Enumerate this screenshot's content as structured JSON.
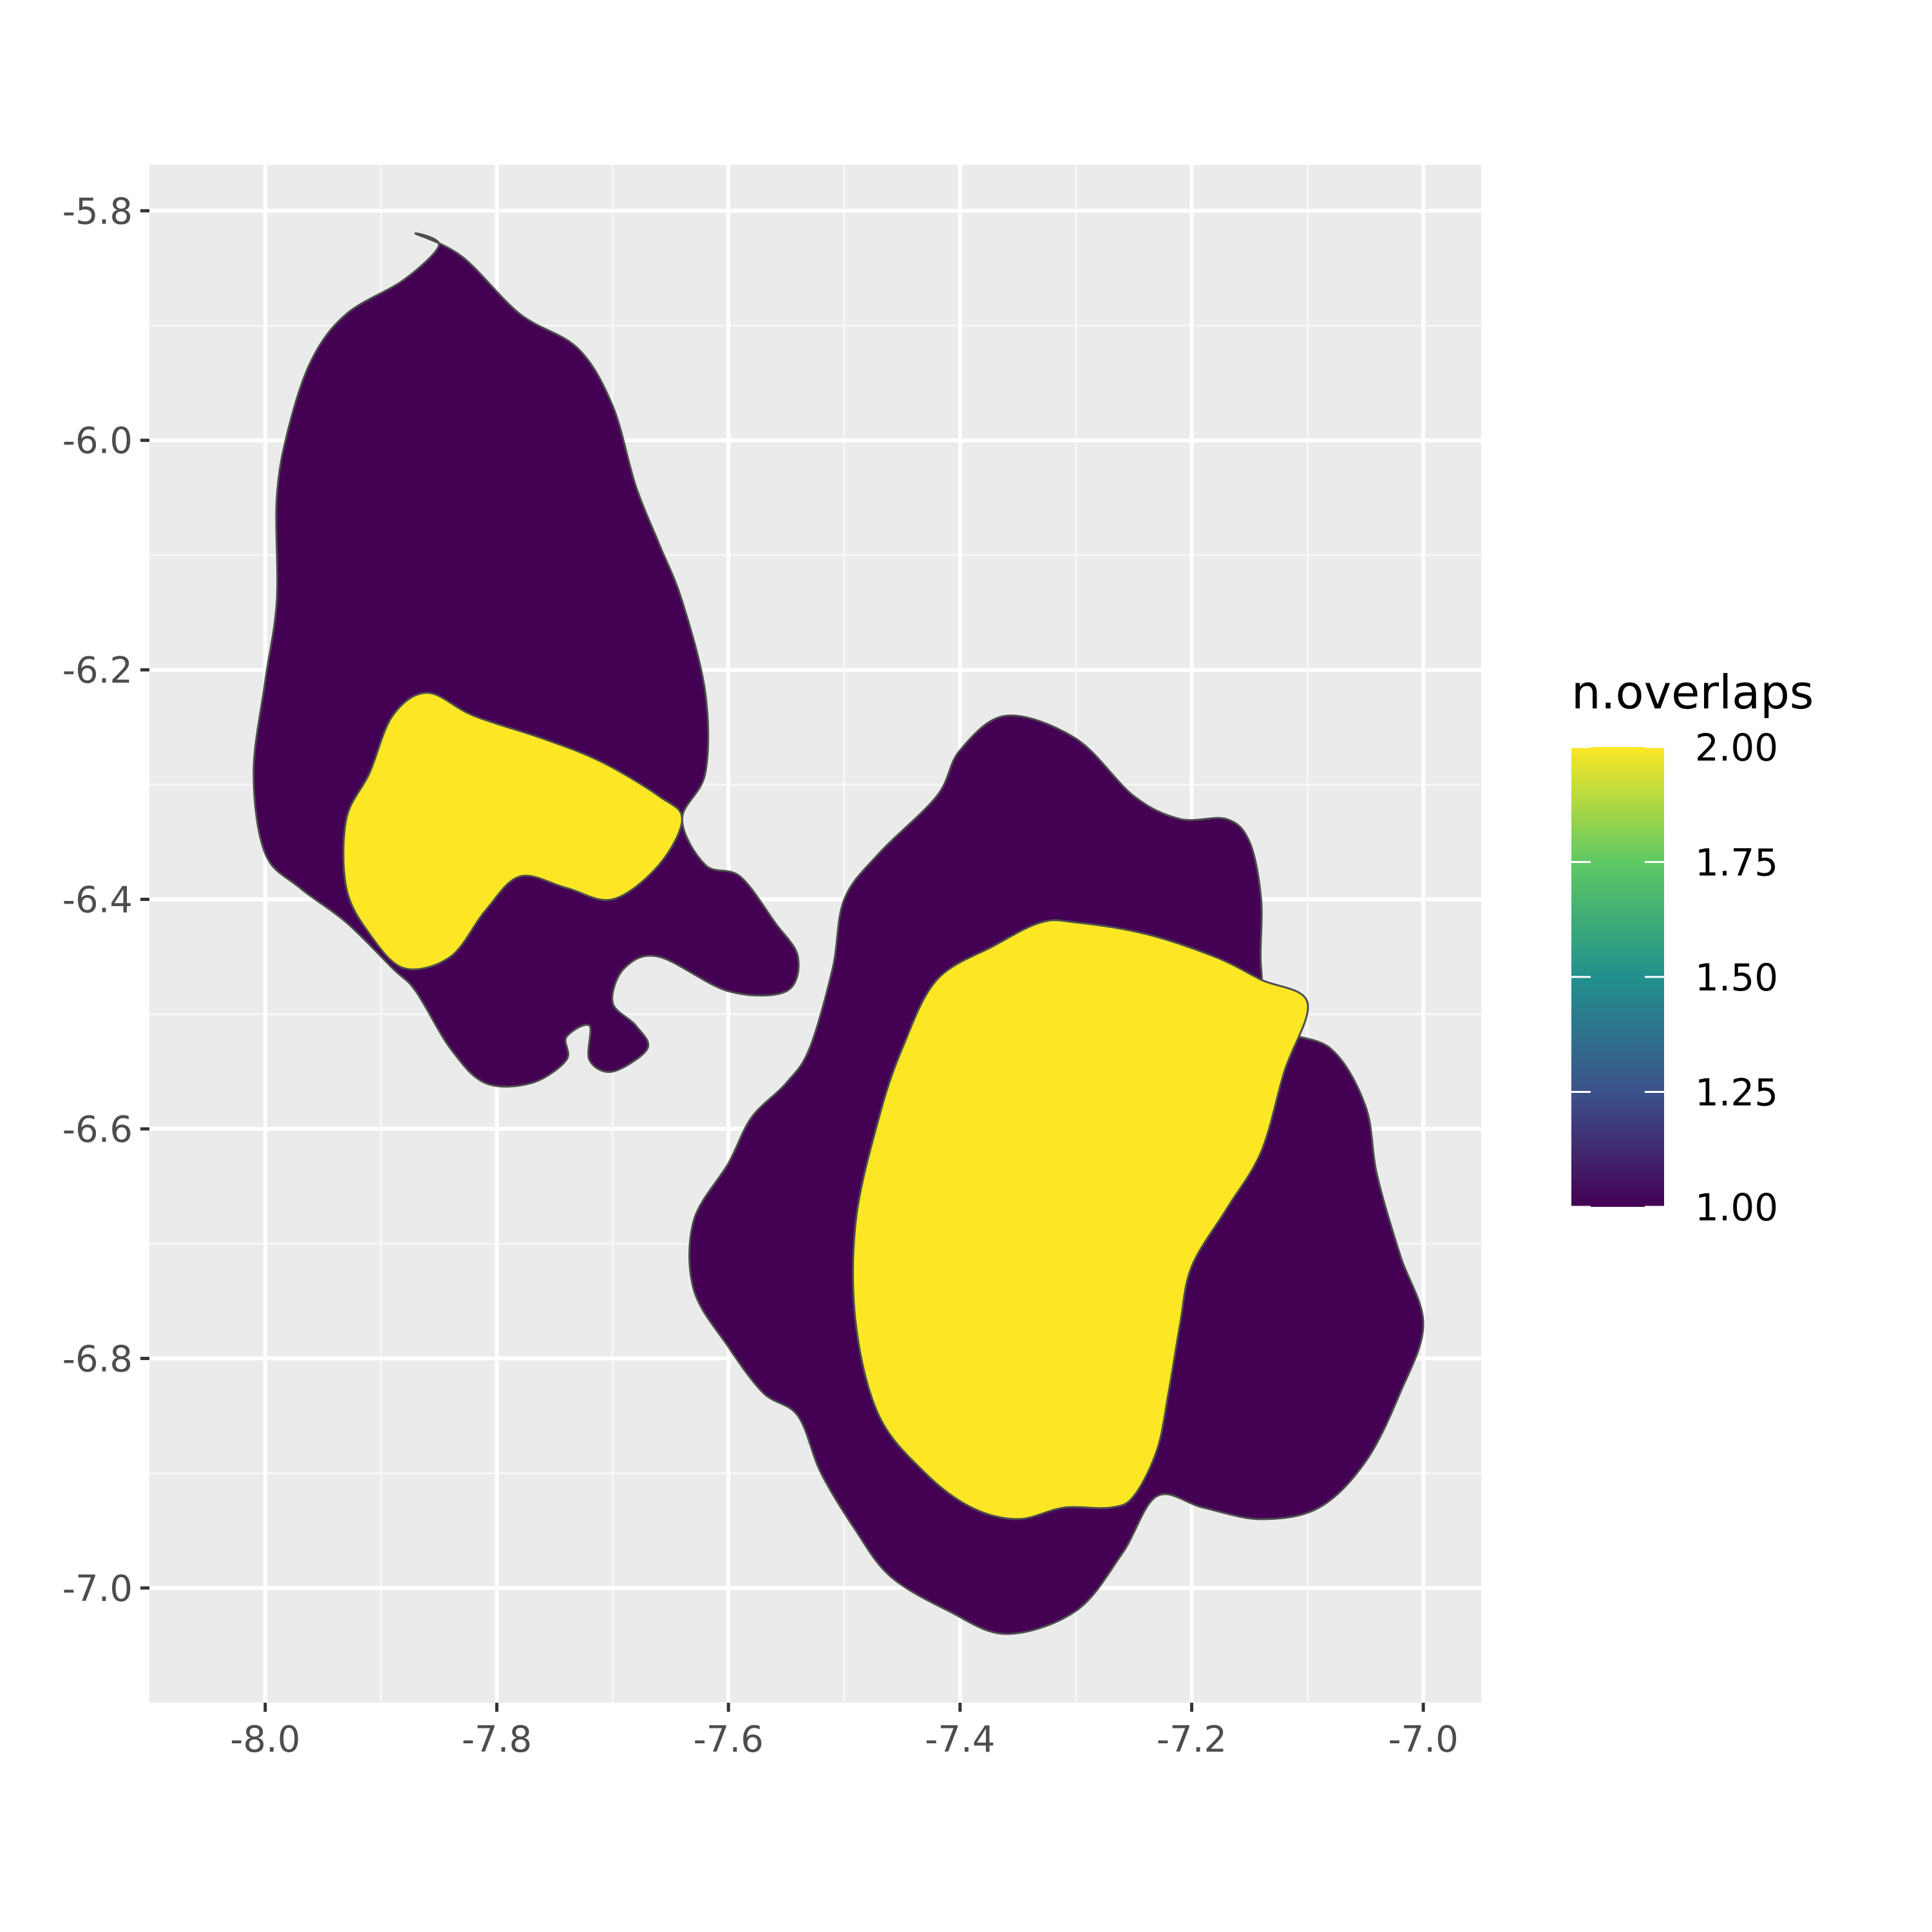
{
  "chart_data": {
    "type": "area",
    "title": "",
    "xlabel": "",
    "ylabel": "",
    "xlim": [
      -8.1,
      -6.95
    ],
    "ylim": [
      -7.1,
      -5.76
    ],
    "x_ticks": [
      -8.0,
      -7.8,
      -7.6,
      -7.4,
      -7.2,
      -7.0
    ],
    "x_tick_labels": [
      "-8.0",
      "-7.8",
      "-7.6",
      "-7.4",
      "-7.2",
      "-7.0"
    ],
    "y_ticks": [
      -5.8,
      -6.0,
      -6.2,
      -6.4,
      -6.6,
      -6.8,
      -7.0
    ],
    "y_tick_labels": [
      "-5.8",
      "-6.0",
      "-6.2",
      "-6.4",
      "-6.6",
      "-6.8",
      "-7.0"
    ],
    "grid": true,
    "background_color": "#ebebeb",
    "outline_color": "#4d4d4d",
    "legend": {
      "title": "n.overlaps",
      "placement": "right",
      "min": 1.0,
      "max": 2.0,
      "breaks": [
        2.0,
        1.75,
        1.5,
        1.25,
        1.0
      ],
      "labels": [
        "2.00",
        "1.75",
        "1.50",
        "1.25",
        "1.00"
      ],
      "gradient": [
        "#440154",
        "#3b528b",
        "#21908c",
        "#5dc963",
        "#fde725"
      ]
    },
    "regions": [
      {
        "n_overlaps": 1,
        "color": "#440154",
        "points": [
          [
            -7.87,
            -5.82
          ],
          [
            -7.83,
            -5.84
          ],
          [
            -7.78,
            -5.89
          ],
          [
            -7.73,
            -5.92
          ],
          [
            -7.7,
            -5.97
          ],
          [
            -7.68,
            -6.04
          ],
          [
            -7.66,
            -6.09
          ],
          [
            -7.64,
            -6.14
          ],
          [
            -7.62,
            -6.22
          ],
          [
            -7.62,
            -6.29
          ],
          [
            -7.64,
            -6.33
          ],
          [
            -7.62,
            -6.37
          ],
          [
            -7.59,
            -6.38
          ],
          [
            -7.56,
            -6.42
          ],
          [
            -7.54,
            -6.45
          ],
          [
            -7.55,
            -6.48
          ],
          [
            -7.6,
            -6.48
          ],
          [
            -7.66,
            -6.45
          ],
          [
            -7.69,
            -6.46
          ],
          [
            -7.7,
            -6.49
          ],
          [
            -7.68,
            -6.51
          ],
          [
            -7.67,
            -6.53
          ],
          [
            -7.7,
            -6.55
          ],
          [
            -7.72,
            -6.54
          ],
          [
            -7.72,
            -6.51
          ],
          [
            -7.74,
            -6.52
          ],
          [
            -7.74,
            -6.54
          ],
          [
            -7.77,
            -6.56
          ],
          [
            -7.81,
            -6.56
          ],
          [
            -7.84,
            -6.53
          ],
          [
            -7.87,
            -6.48
          ],
          [
            -7.89,
            -6.46
          ],
          [
            -7.93,
            -6.42
          ],
          [
            -7.97,
            -6.39
          ],
          [
            -8.0,
            -6.36
          ],
          [
            -8.01,
            -6.29
          ],
          [
            -8.0,
            -6.21
          ],
          [
            -7.99,
            -6.14
          ],
          [
            -7.99,
            -6.05
          ],
          [
            -7.98,
            -5.99
          ],
          [
            -7.96,
            -5.93
          ],
          [
            -7.93,
            -5.89
          ],
          [
            -7.88,
            -5.86
          ],
          [
            -7.85,
            -5.83
          ]
        ]
      },
      {
        "n_overlaps": 2,
        "color": "#fde725",
        "points": [
          [
            -7.86,
            -6.22
          ],
          [
            -7.82,
            -6.24
          ],
          [
            -7.76,
            -6.26
          ],
          [
            -7.71,
            -6.28
          ],
          [
            -7.66,
            -6.31
          ],
          [
            -7.64,
            -6.33
          ],
          [
            -7.66,
            -6.37
          ],
          [
            -7.7,
            -6.4
          ],
          [
            -7.74,
            -6.39
          ],
          [
            -7.78,
            -6.38
          ],
          [
            -7.81,
            -6.41
          ],
          [
            -7.84,
            -6.45
          ],
          [
            -7.88,
            -6.46
          ],
          [
            -7.91,
            -6.43
          ],
          [
            -7.93,
            -6.39
          ],
          [
            -7.93,
            -6.33
          ],
          [
            -7.91,
            -6.29
          ],
          [
            -7.89,
            -6.24
          ]
        ]
      },
      {
        "n_overlaps": 1,
        "color": "#440154",
        "points": [
          [
            -7.36,
            -6.24
          ],
          [
            -7.3,
            -6.26
          ],
          [
            -7.25,
            -6.31
          ],
          [
            -7.21,
            -6.33
          ],
          [
            -7.17,
            -6.33
          ],
          [
            -7.15,
            -6.35
          ],
          [
            -7.14,
            -6.4
          ],
          [
            -7.14,
            -6.46
          ],
          [
            -7.13,
            -6.51
          ],
          [
            -7.08,
            -6.53
          ],
          [
            -7.05,
            -6.58
          ],
          [
            -7.04,
            -6.64
          ],
          [
            -7.02,
            -6.71
          ],
          [
            -7.0,
            -6.77
          ],
          [
            -7.02,
            -6.83
          ],
          [
            -7.05,
            -6.89
          ],
          [
            -7.09,
            -6.93
          ],
          [
            -7.14,
            -6.94
          ],
          [
            -7.19,
            -6.93
          ],
          [
            -7.23,
            -6.92
          ],
          [
            -7.26,
            -6.97
          ],
          [
            -7.3,
            -7.02
          ],
          [
            -7.36,
            -7.04
          ],
          [
            -7.41,
            -7.02
          ],
          [
            -7.46,
            -6.99
          ],
          [
            -7.49,
            -6.95
          ],
          [
            -7.52,
            -6.9
          ],
          [
            -7.54,
            -6.85
          ],
          [
            -7.57,
            -6.83
          ],
          [
            -7.6,
            -6.79
          ],
          [
            -7.63,
            -6.74
          ],
          [
            -7.63,
            -6.68
          ],
          [
            -7.6,
            -6.63
          ],
          [
            -7.58,
            -6.59
          ],
          [
            -7.55,
            -6.56
          ],
          [
            -7.53,
            -6.53
          ],
          [
            -7.51,
            -6.46
          ],
          [
            -7.5,
            -6.4
          ],
          [
            -7.47,
            -6.36
          ],
          [
            -7.42,
            -6.31
          ],
          [
            -7.4,
            -6.27
          ]
        ]
      },
      {
        "n_overlaps": 2,
        "color": "#fde725",
        "points": [
          [
            -7.3,
            -6.42
          ],
          [
            -7.24,
            -6.43
          ],
          [
            -7.18,
            -6.45
          ],
          [
            -7.14,
            -6.47
          ],
          [
            -7.1,
            -6.49
          ],
          [
            -7.12,
            -6.55
          ],
          [
            -7.14,
            -6.62
          ],
          [
            -7.17,
            -6.67
          ],
          [
            -7.2,
            -6.72
          ],
          [
            -7.21,
            -6.77
          ],
          [
            -7.22,
            -6.83
          ],
          [
            -7.23,
            -6.88
          ],
          [
            -7.25,
            -6.92
          ],
          [
            -7.27,
            -6.93
          ],
          [
            -7.31,
            -6.93
          ],
          [
            -7.35,
            -6.94
          ],
          [
            -7.39,
            -6.93
          ],
          [
            -7.43,
            -6.9
          ],
          [
            -7.47,
            -6.85
          ],
          [
            -7.49,
            -6.77
          ],
          [
            -7.49,
            -6.68
          ],
          [
            -7.47,
            -6.59
          ],
          [
            -7.45,
            -6.53
          ],
          [
            -7.42,
            -6.47
          ],
          [
            -7.37,
            -6.44
          ],
          [
            -7.33,
            -6.42
          ]
        ]
      }
    ]
  }
}
